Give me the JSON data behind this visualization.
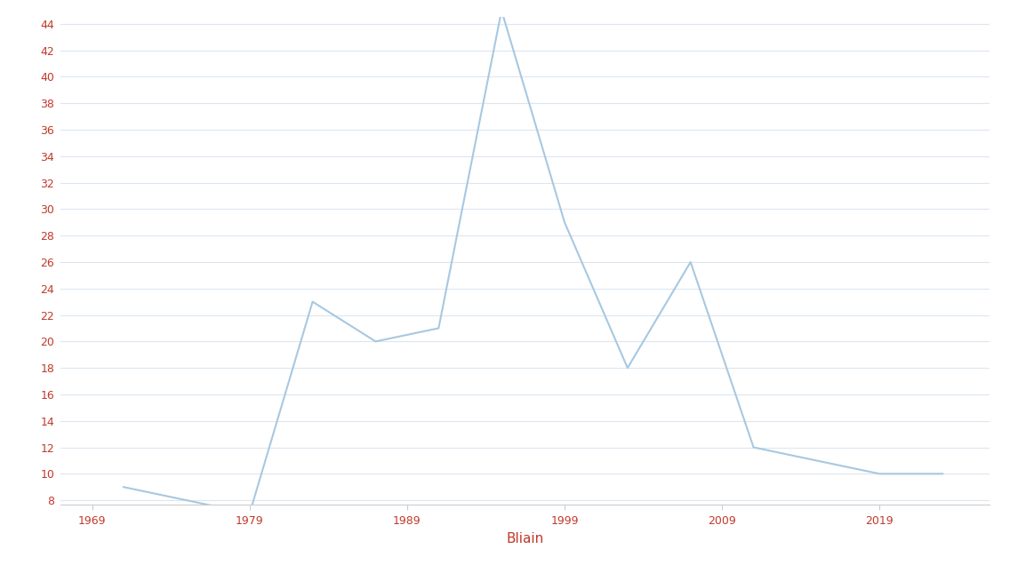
{
  "x": [
    1971,
    1975,
    1979,
    1983,
    1987,
    1991,
    1995,
    1999,
    2003,
    2007,
    2011,
    2015,
    2019,
    2023
  ],
  "y": [
    9,
    8,
    7,
    23,
    20,
    21,
    45,
    29,
    18,
    26,
    12,
    11,
    10,
    10
  ],
  "line_color": "#a8c8e0",
  "line_width": 1.5,
  "xlabel": "Bliain",
  "xlabel_color": "#c0392b",
  "xlabel_fontsize": 11,
  "xtick_labels": [
    "1969",
    "1979",
    "1989",
    "1999",
    "2009",
    "2019"
  ],
  "xtick_positions": [
    1969,
    1979,
    1989,
    1999,
    2009,
    2019
  ],
  "ytick_start": 8,
  "ytick_end": 44,
  "ytick_step": 2,
  "xlim_left": 1967,
  "xlim_right": 2026,
  "background_color": "#ffffff",
  "grid_color": "#dce6f0",
  "tick_color": "#c0392b",
  "ytick_color": "#c0392b"
}
